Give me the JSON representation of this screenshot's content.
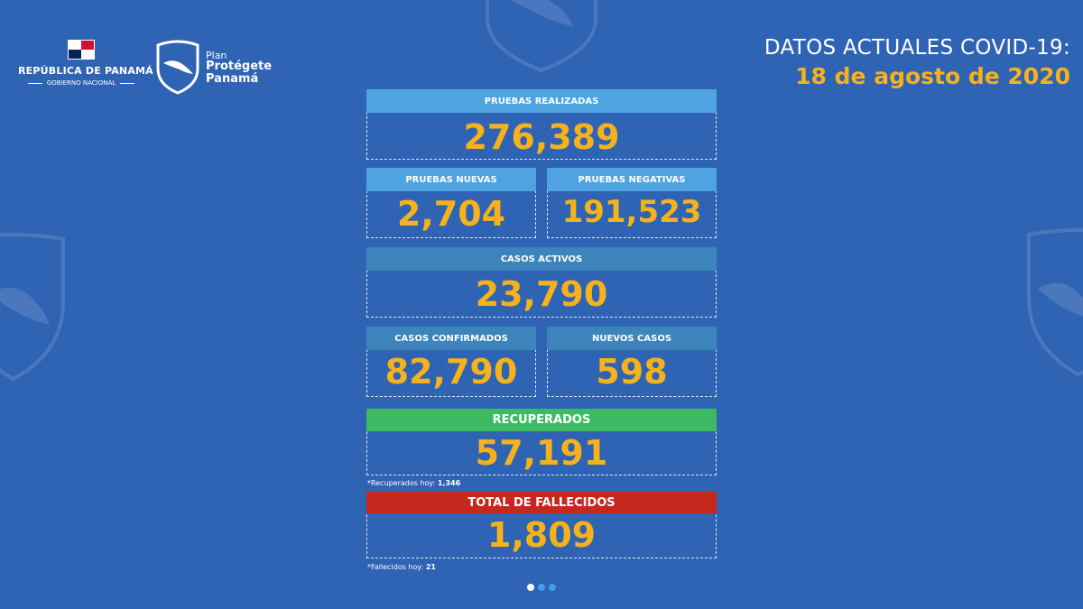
{
  "header": {
    "republic_title": "REPÚBLICA DE PANAMÁ",
    "government_label": "GOBIERNO NACIONAL",
    "plan_label": "Plan",
    "plan_name_line1": "Protégete",
    "plan_name_line2": "Panamá",
    "title": "DATOS ACTUALES COVID-19:",
    "date": "18 de agosto de 2020"
  },
  "stats": {
    "pruebas_realizadas": {
      "label": "PRUEBAS REALIZADAS",
      "value": "276,389"
    },
    "pruebas_nuevas": {
      "label": "PRUEBAS NUEVAS",
      "value": "2,704"
    },
    "pruebas_negativas": {
      "label": "PRUEBAS NEGATIVAS",
      "value": "191,523"
    },
    "casos_activos": {
      "label": "CASOS ACTIVOS",
      "value": "23,790"
    },
    "casos_confirmados": {
      "label": "CASOS CONFIRMADOS",
      "value": "82,790"
    },
    "nuevos_casos": {
      "label": "NUEVOS CASOS",
      "value": "598"
    },
    "recuperados": {
      "label": "RECUPERADOS",
      "value": "57,191",
      "note_label": "*Recuperados hoy:",
      "note_value": "1,346"
    },
    "fallecidos": {
      "label": "TOTAL DE FALLECIDOS",
      "value": "1,809",
      "note_label": "*Fallecidos hoy:",
      "note_value": "21"
    }
  },
  "pagination": {
    "total": 3,
    "active": 1
  },
  "colors": {
    "background": "#2f63b4",
    "accent_yellow": "#f6b21a",
    "label_light_blue": "#4ea3e0",
    "label_dark_blue": "#3e84bc",
    "label_green": "#3cbb63",
    "label_red": "#c7281e"
  }
}
